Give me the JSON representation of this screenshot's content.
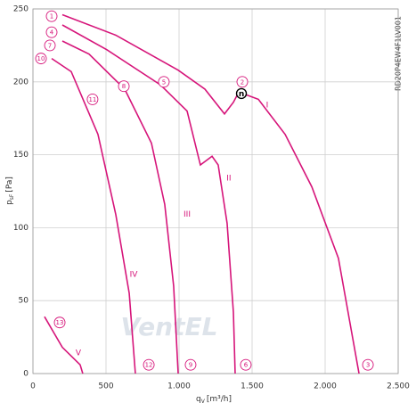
{
  "chart_data": {
    "type": "line",
    "xlabel": {
      "main": "q",
      "sub": "V",
      "unit": "[m³/h]"
    },
    "ylabel": {
      "main": "p",
      "sub": "sF",
      "unit": "[Pa]"
    },
    "side_text": "RD20P4EW4F1LV001",
    "watermark": "VentEL",
    "xlim": [
      0,
      2500
    ],
    "ylim": [
      0,
      250
    ],
    "xticks": [
      0,
      500,
      {
        "value": 1000,
        "label": "1.000"
      },
      {
        "value": 1500,
        "label": "1.500"
      },
      {
        "value": 2000,
        "label": "2.000"
      },
      {
        "value": 2500,
        "label": "2.500"
      }
    ],
    "yticks": [
      0,
      50,
      100,
      150,
      200,
      250
    ],
    "grid": true,
    "series": [
      {
        "name": "I",
        "color": "#d6157a",
        "x": [
          201,
          567,
          994,
          1177,
          1311,
          1372,
          1409,
          1543,
          1726,
          1909,
          2091,
          2232
        ],
        "values": [
          246,
          232,
          208,
          195,
          178,
          186,
          193,
          188,
          164,
          128,
          79,
          0
        ]
      },
      {
        "name": "II",
        "color": "#d6157a",
        "x": [
          201,
          506,
          872,
          1055,
          1146,
          1226,
          1268,
          1329,
          1372,
          1384
        ],
        "values": [
          239,
          222,
          198,
          180,
          143,
          149,
          143,
          103,
          42,
          0
        ]
      },
      {
        "name": "III",
        "color": "#d6157a",
        "x": [
          201,
          384,
          628,
          811,
          902,
          963,
          994
        ],
        "values": [
          228,
          219,
          195,
          158,
          116,
          60,
          0
        ]
      },
      {
        "name": "IV",
        "color": "#d6157a",
        "x": [
          128,
          262,
          445,
          567,
          659,
          701
        ],
        "values": [
          216,
          207,
          164,
          109,
          55,
          0
        ]
      },
      {
        "name": "V",
        "color": "#d6157a",
        "x": [
          79,
          201,
          323,
          341
        ],
        "values": [
          39,
          18,
          6,
          0
        ]
      }
    ],
    "annotations": [
      "1",
      "4",
      "7",
      "10",
      "11",
      "8",
      "5",
      "2",
      "13",
      "12",
      "9",
      "6",
      "3"
    ],
    "point_label": "n"
  }
}
